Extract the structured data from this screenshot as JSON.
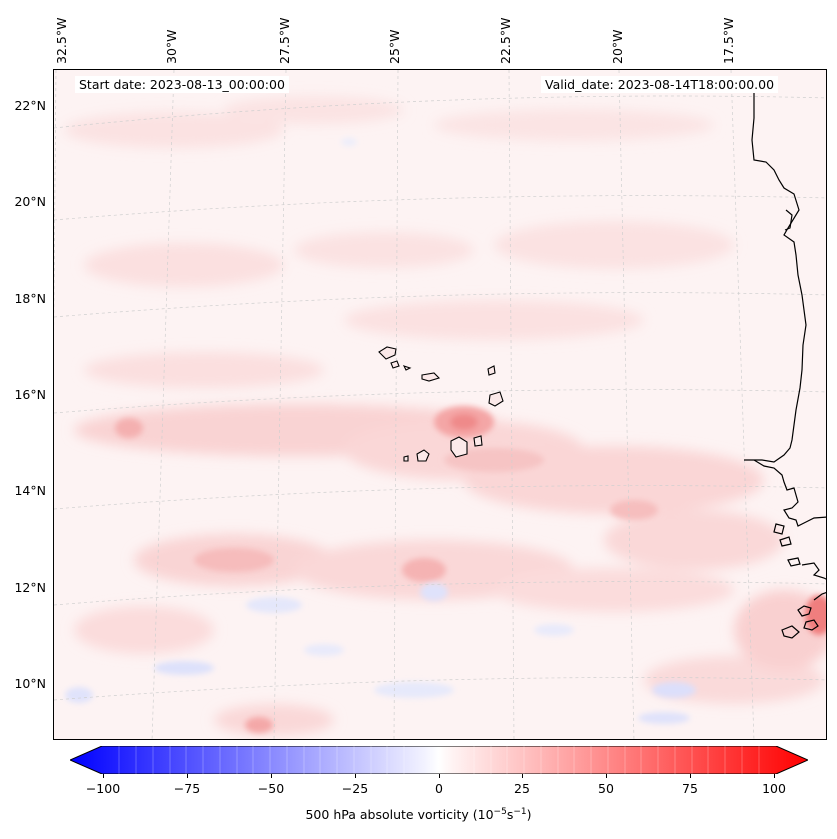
{
  "map": {
    "title_left": "Start date: 2023-08-13_00:00:00",
    "title_right": "Valid_date: 2023-08-14T18:00:00.00",
    "lon_labels": [
      "32.5°W",
      "30°W",
      "27.5°W",
      "25°W",
      "22.5°W",
      "20°W",
      "17.5°W"
    ],
    "lat_labels": [
      "22°N",
      "20°N",
      "18°N",
      "16°N",
      "14°N",
      "12°N",
      "10°N"
    ],
    "field": "500 hPa absolute vorticity",
    "colors": {
      "neg_max": "#0000ff",
      "pos_max": "#ff0000",
      "background": "#fdf6f6",
      "coast": "#000000"
    }
  },
  "colorbar": {
    "ticks": [
      "−100",
      "−75",
      "−50",
      "−25",
      "0",
      "25",
      "50",
      "75",
      "100"
    ],
    "label_text": "500 hPa absolute vorticity (10",
    "label_exp1": "−5",
    "label_mid": "s",
    "label_exp2": "−1",
    "label_end": ")"
  }
}
